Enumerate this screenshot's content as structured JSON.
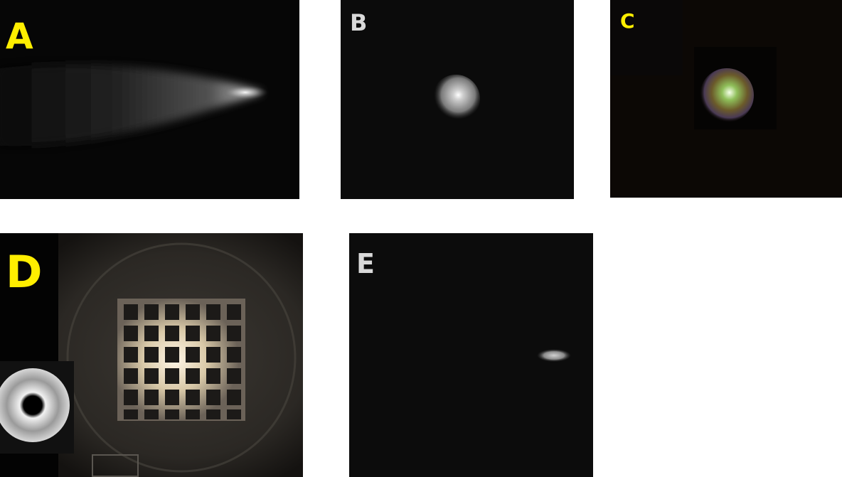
{
  "panels": {
    "a": {
      "label": "A",
      "label_color": "#ffee00"
    },
    "b": {
      "label": "B",
      "label_color": "#d9d9d9"
    },
    "c": {
      "label": "C",
      "label_color": "#ffee00"
    },
    "d": {
      "label": "D",
      "label_color": "#ffee00"
    },
    "e": {
      "label": "E",
      "label_color": "#d9d9d9"
    }
  }
}
